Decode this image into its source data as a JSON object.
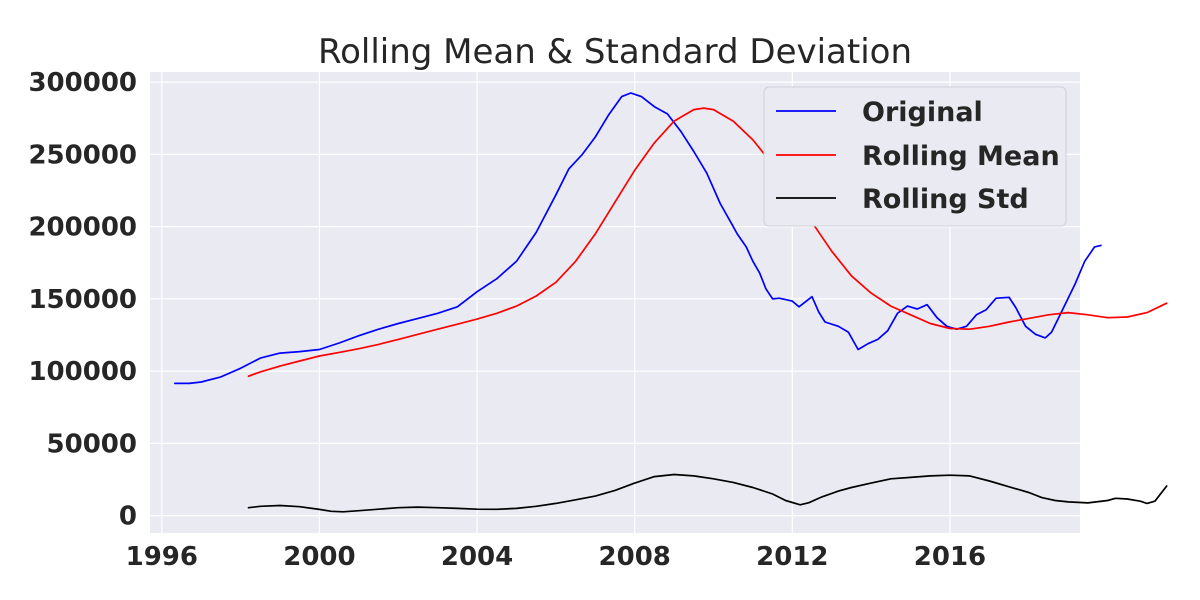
{
  "chart_data": {
    "type": "line",
    "title": "Rolling Mean & Standard Deviation",
    "xlabel": "",
    "ylabel": "",
    "xlim": [
      1995.7,
      2019.3
    ],
    "ylim": [
      -12000,
      307000
    ],
    "x_ticks": [
      {
        "value": 1996,
        "label": "1996"
      },
      {
        "value": 2000,
        "label": "2000"
      },
      {
        "value": 2004,
        "label": "2004"
      },
      {
        "value": 2008,
        "label": "2008"
      },
      {
        "value": 2012,
        "label": "2012"
      },
      {
        "value": 2016,
        "label": "2016"
      }
    ],
    "y_ticks": [
      {
        "value": 0,
        "label": "0"
      },
      {
        "value": 50000,
        "label": "50000"
      },
      {
        "value": 100000,
        "label": "100000"
      },
      {
        "value": 150000,
        "label": "150000"
      },
      {
        "value": 200000,
        "label": "200000"
      },
      {
        "value": 250000,
        "label": "250000"
      },
      {
        "value": 300000,
        "label": "300000"
      }
    ],
    "grid": true,
    "legend_position": "top-right",
    "series": [
      {
        "name": "Original",
        "color": "#0000ff",
        "points": [
          [
            1996.33,
            91500
          ],
          [
            1996.7,
            91500
          ],
          [
            1997.0,
            92500
          ],
          [
            1997.5,
            96000
          ],
          [
            1998.0,
            102000
          ],
          [
            1998.5,
            109000
          ],
          [
            1999.0,
            112500
          ],
          [
            1999.5,
            113500
          ],
          [
            2000.0,
            115000
          ],
          [
            2000.5,
            119500
          ],
          [
            2001.0,
            124500
          ],
          [
            2001.5,
            129000
          ],
          [
            2002.0,
            133000
          ],
          [
            2002.5,
            136500
          ],
          [
            2003.0,
            140000
          ],
          [
            2003.5,
            144500
          ],
          [
            2004.0,
            155000
          ],
          [
            2004.5,
            164000
          ],
          [
            2005.0,
            176000
          ],
          [
            2005.5,
            196000
          ],
          [
            2006.0,
            222000
          ],
          [
            2006.33,
            240000
          ],
          [
            2006.67,
            250000
          ],
          [
            2007.0,
            262000
          ],
          [
            2007.33,
            277000
          ],
          [
            2007.67,
            290000
          ],
          [
            2007.9,
            292500
          ],
          [
            2008.17,
            290000
          ],
          [
            2008.5,
            283000
          ],
          [
            2008.83,
            278000
          ],
          [
            2009.17,
            266000
          ],
          [
            2009.5,
            252000
          ],
          [
            2009.83,
            237000
          ],
          [
            2010.17,
            216000
          ],
          [
            2010.5,
            200000
          ],
          [
            2010.6,
            195000
          ],
          [
            2010.83,
            186000
          ],
          [
            2011.0,
            176000
          ],
          [
            2011.17,
            168000
          ],
          [
            2011.33,
            157000
          ],
          [
            2011.5,
            150000
          ],
          [
            2011.67,
            150500
          ],
          [
            2012.0,
            148500
          ],
          [
            2012.17,
            144500
          ],
          [
            2012.5,
            151500
          ],
          [
            2012.67,
            141000
          ],
          [
            2012.83,
            134000
          ],
          [
            2013.17,
            131000
          ],
          [
            2013.42,
            127000
          ],
          [
            2013.67,
            115000
          ],
          [
            2013.92,
            119000
          ],
          [
            2014.17,
            122000
          ],
          [
            2014.42,
            128000
          ],
          [
            2014.67,
            140000
          ],
          [
            2014.92,
            145000
          ],
          [
            2015.17,
            143000
          ],
          [
            2015.42,
            146000
          ],
          [
            2015.67,
            137000
          ],
          [
            2015.92,
            131000
          ],
          [
            2016.17,
            129000
          ],
          [
            2016.42,
            131000
          ],
          [
            2016.67,
            139000
          ],
          [
            2016.92,
            142500
          ],
          [
            2017.17,
            150500
          ],
          [
            2017.5,
            151000
          ],
          [
            2017.67,
            144000
          ],
          [
            2017.92,
            131000
          ],
          [
            2018.17,
            125500
          ],
          [
            2018.42,
            123000
          ],
          [
            2018.58,
            127000
          ],
          [
            2018.83,
            141000
          ],
          [
            2019.17,
            160000
          ],
          [
            2019.42,
            176000
          ],
          [
            2019.67,
            186000
          ],
          [
            2019.83,
            187000
          ]
        ]
      },
      {
        "name": "Rolling Mean",
        "color": "#ff0000",
        "points": [
          [
            1998.2,
            96500
          ],
          [
            1998.5,
            99500
          ],
          [
            1999.0,
            103500
          ],
          [
            1999.5,
            107000
          ],
          [
            2000.0,
            110500
          ],
          [
            2000.5,
            113000
          ],
          [
            2001.0,
            115500
          ],
          [
            2001.5,
            118500
          ],
          [
            2002.0,
            122000
          ],
          [
            2002.5,
            125500
          ],
          [
            2003.0,
            129000
          ],
          [
            2003.5,
            132500
          ],
          [
            2004.0,
            136000
          ],
          [
            2004.5,
            140000
          ],
          [
            2005.0,
            145000
          ],
          [
            2005.5,
            152000
          ],
          [
            2006.0,
            161500
          ],
          [
            2006.5,
            176000
          ],
          [
            2007.0,
            195000
          ],
          [
            2007.5,
            217000
          ],
          [
            2008.0,
            239000
          ],
          [
            2008.5,
            258000
          ],
          [
            2009.0,
            273000
          ],
          [
            2009.5,
            281000
          ],
          [
            2009.75,
            282000
          ],
          [
            2010.0,
            281000
          ],
          [
            2010.5,
            273000
          ],
          [
            2011.0,
            260000
          ],
          [
            2011.5,
            243000
          ],
          [
            2012.0,
            224000
          ],
          [
            2012.5,
            203000
          ],
          [
            2013.0,
            183000
          ],
          [
            2013.5,
            166000
          ],
          [
            2014.0,
            154000
          ],
          [
            2014.5,
            145000
          ],
          [
            2015.0,
            139000
          ],
          [
            2015.5,
            133000
          ],
          [
            2016.0,
            129500
          ],
          [
            2016.5,
            129000
          ],
          [
            2017.0,
            131000
          ],
          [
            2017.5,
            134000
          ],
          [
            2018.0,
            136500
          ],
          [
            2018.5,
            139000
          ],
          [
            2019.0,
            140500
          ],
          [
            2019.5,
            139000
          ],
          [
            2020.0,
            137000
          ],
          [
            2020.5,
            137500
          ],
          [
            2021.0,
            140500
          ],
          [
            2021.5,
            147000
          ]
        ]
      },
      {
        "name": "Rolling Std",
        "color": "#000000",
        "points": [
          [
            1998.2,
            5500
          ],
          [
            1998.5,
            6500
          ],
          [
            1999.0,
            7000
          ],
          [
            1999.5,
            6200
          ],
          [
            2000.0,
            4300
          ],
          [
            2000.3,
            3000
          ],
          [
            2000.6,
            2700
          ],
          [
            2001.0,
            3400
          ],
          [
            2001.5,
            4500
          ],
          [
            2002.0,
            5500
          ],
          [
            2002.5,
            5900
          ],
          [
            2003.0,
            5500
          ],
          [
            2003.5,
            5000
          ],
          [
            2004.0,
            4500
          ],
          [
            2004.5,
            4400
          ],
          [
            2005.0,
            5000
          ],
          [
            2005.5,
            6500
          ],
          [
            2006.0,
            8500
          ],
          [
            2006.5,
            11000
          ],
          [
            2007.0,
            13500
          ],
          [
            2007.5,
            17500
          ],
          [
            2008.0,
            22500
          ],
          [
            2008.5,
            27000
          ],
          [
            2009.0,
            28500
          ],
          [
            2009.5,
            27500
          ],
          [
            2010.0,
            25500
          ],
          [
            2010.5,
            23000
          ],
          [
            2011.0,
            19500
          ],
          [
            2011.5,
            15000
          ],
          [
            2011.83,
            10500
          ],
          [
            2012.2,
            7500
          ],
          [
            2012.42,
            9000
          ],
          [
            2012.75,
            13000
          ],
          [
            2013.17,
            17000
          ],
          [
            2013.5,
            19500
          ],
          [
            2014.0,
            22500
          ],
          [
            2014.5,
            25500
          ],
          [
            2015.0,
            26500
          ],
          [
            2015.5,
            27500
          ],
          [
            2016.0,
            28000
          ],
          [
            2016.5,
            27500
          ],
          [
            2017.0,
            24000
          ],
          [
            2017.5,
            20000
          ],
          [
            2018.0,
            16000
          ],
          [
            2018.33,
            12500
          ],
          [
            2018.67,
            10500
          ],
          [
            2019.0,
            9500
          ],
          [
            2019.5,
            8800
          ],
          [
            2020.0,
            10500
          ],
          [
            2020.2,
            12000
          ],
          [
            2020.5,
            11500
          ],
          [
            2020.83,
            10000
          ],
          [
            2021.0,
            8500
          ],
          [
            2021.2,
            10000
          ],
          [
            2021.5,
            20500
          ]
        ]
      }
    ]
  }
}
